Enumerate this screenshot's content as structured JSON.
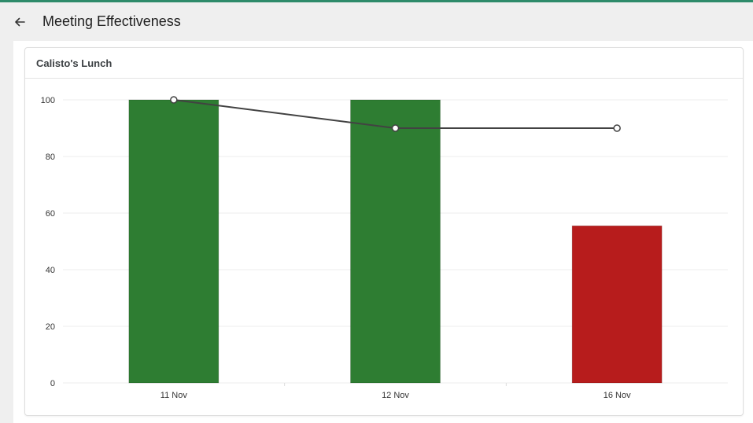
{
  "header": {
    "title": "Meeting Effectiveness",
    "back_icon": "arrow-left-icon"
  },
  "colors": {
    "accent": "#2e8b6a",
    "good_bar": "#2e7d32",
    "bad_bar": "#b71c1c",
    "line": "#424242"
  },
  "card": {
    "title": "Calisto's Lunch"
  },
  "chart_data": {
    "type": "bar",
    "categories": [
      "11 Nov",
      "12 Nov",
      "16 Nov"
    ],
    "series": [
      {
        "type": "bar",
        "values": [
          100,
          100,
          55.5
        ],
        "colors": [
          "#2e7d32",
          "#2e7d32",
          "#b71c1c"
        ]
      },
      {
        "type": "line",
        "values": [
          100,
          90,
          90
        ]
      }
    ],
    "ylim": [
      0,
      100
    ],
    "yticks": [
      0,
      20,
      40,
      60,
      80,
      100
    ],
    "grid": true
  }
}
